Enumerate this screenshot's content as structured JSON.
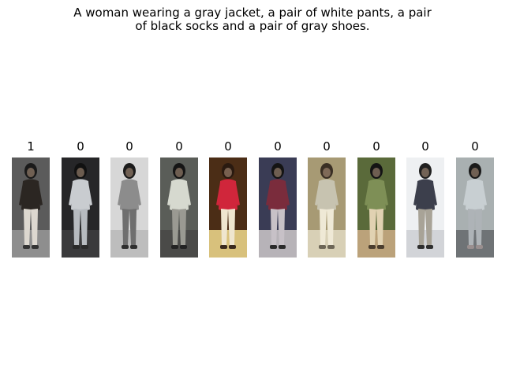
{
  "title": "A woman wearing a gray jacket, a pair of white pants, a pair of black socks and a pair of gray shoes.",
  "title_lines": [
    "A woman wearing a gray jacket, a pair of white pants, a pair",
    "of black socks and a pair of gray shoes."
  ],
  "candidates": [
    {
      "label": "1",
      "bg": "#5b5b5b",
      "ground": "#8e8e8e",
      "hair": "#1a1a1a",
      "top": "#2b2622",
      "legs": "#ddd8d0",
      "shoes": "#333333"
    },
    {
      "label": "0",
      "bg": "#262628",
      "ground": "#3a3a3c",
      "hair": "#111111",
      "top": "#c9ccd0",
      "legs": "#b7bbc0",
      "shoes": "#2a2a2a"
    },
    {
      "label": "0",
      "bg": "#d7d7d7",
      "ground": "#bdbdbd",
      "hair": "#1b1b1b",
      "top": "#8c8c8c",
      "legs": "#6f6f6f",
      "shoes": "#2e2e2e"
    },
    {
      "label": "0",
      "bg": "#5a5d58",
      "ground": "#4a4a48",
      "hair": "#151515",
      "top": "#d6d9cf",
      "legs": "#9a9a92",
      "shoes": "#232323"
    },
    {
      "label": "0",
      "bg": "#4b2d16",
      "ground": "#d8c17c",
      "hair": "#2a1a10",
      "top": "#d0263b",
      "legs": "#efe6cf",
      "shoes": "#3a2a1e"
    },
    {
      "label": "0",
      "bg": "#3a3c55",
      "ground": "#b7b3b8",
      "hair": "#141414",
      "top": "#7a2c3c",
      "legs": "#c7c1c7",
      "shoes": "#2a2a2a"
    },
    {
      "label": "0",
      "bg": "#a79a74",
      "ground": "#d8d0b6",
      "hair": "#3a2f24",
      "top": "#c7c3b0",
      "legs": "#efe9d6",
      "shoes": "#6d6657"
    },
    {
      "label": "0",
      "bg": "#5a6a3a",
      "ground": "#bba27a",
      "hair": "#141414",
      "top": "#7e8f56",
      "legs": "#e1d2b2",
      "shoes": "#4a3d2e"
    },
    {
      "label": "0",
      "bg": "#eef0f2",
      "ground": "#d2d4d8",
      "hair": "#202020",
      "top": "#3c3f4c",
      "legs": "#a8a397",
      "shoes": "#2e2e2e"
    },
    {
      "label": "0",
      "bg": "#a9b0b1",
      "ground": "#6f7376",
      "hair": "#1a1a1a",
      "top": "#c8cfd2",
      "legs": "#aeb3b7",
      "shoes": "#9a8f8f"
    }
  ]
}
